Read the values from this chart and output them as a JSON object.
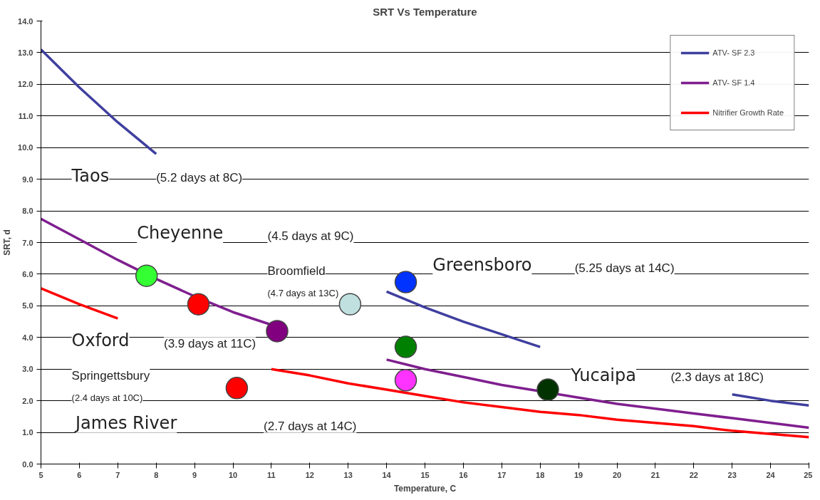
{
  "chart_data": {
    "type": "line",
    "title": "SRT Vs Temperature",
    "xlabel": "Temperature, C",
    "ylabel": "SRT, d",
    "x": [
      5,
      6,
      7,
      8,
      9,
      10,
      11,
      12,
      13,
      14,
      15,
      16,
      17,
      18,
      19,
      20,
      21,
      22,
      23,
      24,
      25
    ],
    "series": [
      {
        "name": "ATV- SF 2.3",
        "color": "#3f3f9f",
        "values": [
          13.1,
          11.9,
          10.8,
          9.8,
          null,
          null,
          null,
          null,
          null,
          5.45,
          4.95,
          4.5,
          4.1,
          3.7,
          null,
          null,
          null,
          null,
          2.2,
          2.0,
          1.85
        ]
      },
      {
        "name": "ATV- SF 1.4",
        "color": "#7f1f8f",
        "values": [
          7.75,
          7.1,
          6.45,
          5.85,
          5.3,
          4.8,
          4.4,
          null,
          null,
          3.3,
          3.0,
          2.75,
          2.5,
          2.3,
          2.1,
          1.9,
          1.75,
          1.6,
          1.45,
          1.3,
          1.15
        ]
      },
      {
        "name": "Nitrifier Growth Rate",
        "color": "#ff0000",
        "values": [
          5.55,
          5.05,
          4.6,
          null,
          null,
          null,
          3.0,
          2.8,
          2.55,
          2.35,
          2.15,
          1.95,
          1.8,
          1.65,
          1.55,
          1.4,
          1.3,
          1.2,
          1.05,
          0.95,
          0.85
        ]
      },
      {
        "type": "scatter",
        "marker": "circle",
        "color": "#33ff33",
        "x": [
          7.75
        ],
        "values": [
          5.95
        ]
      },
      {
        "type": "scatter",
        "marker": "circle",
        "color": "#ff0000",
        "x": [
          9.1
        ],
        "values": [
          5.05
        ]
      },
      {
        "type": "scatter",
        "marker": "circle",
        "color": "#800080",
        "x": [
          11.15
        ],
        "values": [
          4.2
        ]
      },
      {
        "type": "scatter",
        "marker": "circle",
        "color": "#c0e0e0",
        "x": [
          13.05
        ],
        "values": [
          5.05
        ]
      },
      {
        "type": "scatter",
        "marker": "circle",
        "color": "#0033ff",
        "x": [
          14.5
        ],
        "values": [
          5.75
        ]
      },
      {
        "type": "scatter",
        "marker": "circle",
        "color": "#008000",
        "x": [
          14.5
        ],
        "values": [
          3.7
        ]
      },
      {
        "type": "scatter",
        "marker": "circle",
        "color": "#ff33ff",
        "x": [
          14.5
        ],
        "values": [
          2.65
        ]
      },
      {
        "type": "scatter",
        "marker": "circle",
        "color": "#003300",
        "x": [
          18.2
        ],
        "values": [
          2.35
        ]
      },
      {
        "type": "scatter",
        "marker": "circle",
        "color": "#ff0000",
        "x": [
          10.1
        ],
        "values": [
          2.4
        ]
      }
    ],
    "annotations": [
      "Taos",
      "(5.2 days at 8C)",
      "Cheyenne",
      "(4.5 days at 9C)",
      "Broomfield",
      "(4.7 days at 13C)",
      "Greensboro",
      "(5.25 days at 14C)",
      "Oxford",
      "(3.9 days at 11C)",
      "Springettsbury",
      "(2.4 days at 10C)",
      "Yucaipa",
      "(2.3 days at 18C)",
      "James River",
      "(2.7 days at 14C)"
    ],
    "xlim": [
      5,
      25
    ],
    "xticks": [
      5,
      6,
      7,
      8,
      9,
      10,
      11,
      12,
      13,
      14,
      15,
      16,
      17,
      18,
      19,
      20,
      21,
      22,
      23,
      24,
      25
    ],
    "ylim": [
      0,
      14
    ],
    "yticks": [
      {
        "value": 0,
        "label": "0.0"
      },
      {
        "value": 1,
        "label": "1.0"
      },
      {
        "value": 2,
        "label": "2.0"
      },
      {
        "value": 3,
        "label": "3.0"
      },
      {
        "value": 4,
        "label": "4.0"
      },
      {
        "value": 5,
        "label": "5.0"
      },
      {
        "value": 6,
        "label": "6.0"
      },
      {
        "value": 7,
        "label": "7.0"
      },
      {
        "value": 8,
        "label": "8.0"
      },
      {
        "value": 9,
        "label": "9.0"
      },
      {
        "value": 10,
        "label": "10.0"
      },
      {
        "value": 11,
        "label": "11.0"
      },
      {
        "value": 12,
        "label": "12.0"
      },
      {
        "value": 13,
        "label": "13.0"
      },
      {
        "value": 14,
        "label": "14.0"
      }
    ],
    "grid": "y",
    "legend": "top right",
    "marker": "none",
    "line_style": "solid"
  }
}
